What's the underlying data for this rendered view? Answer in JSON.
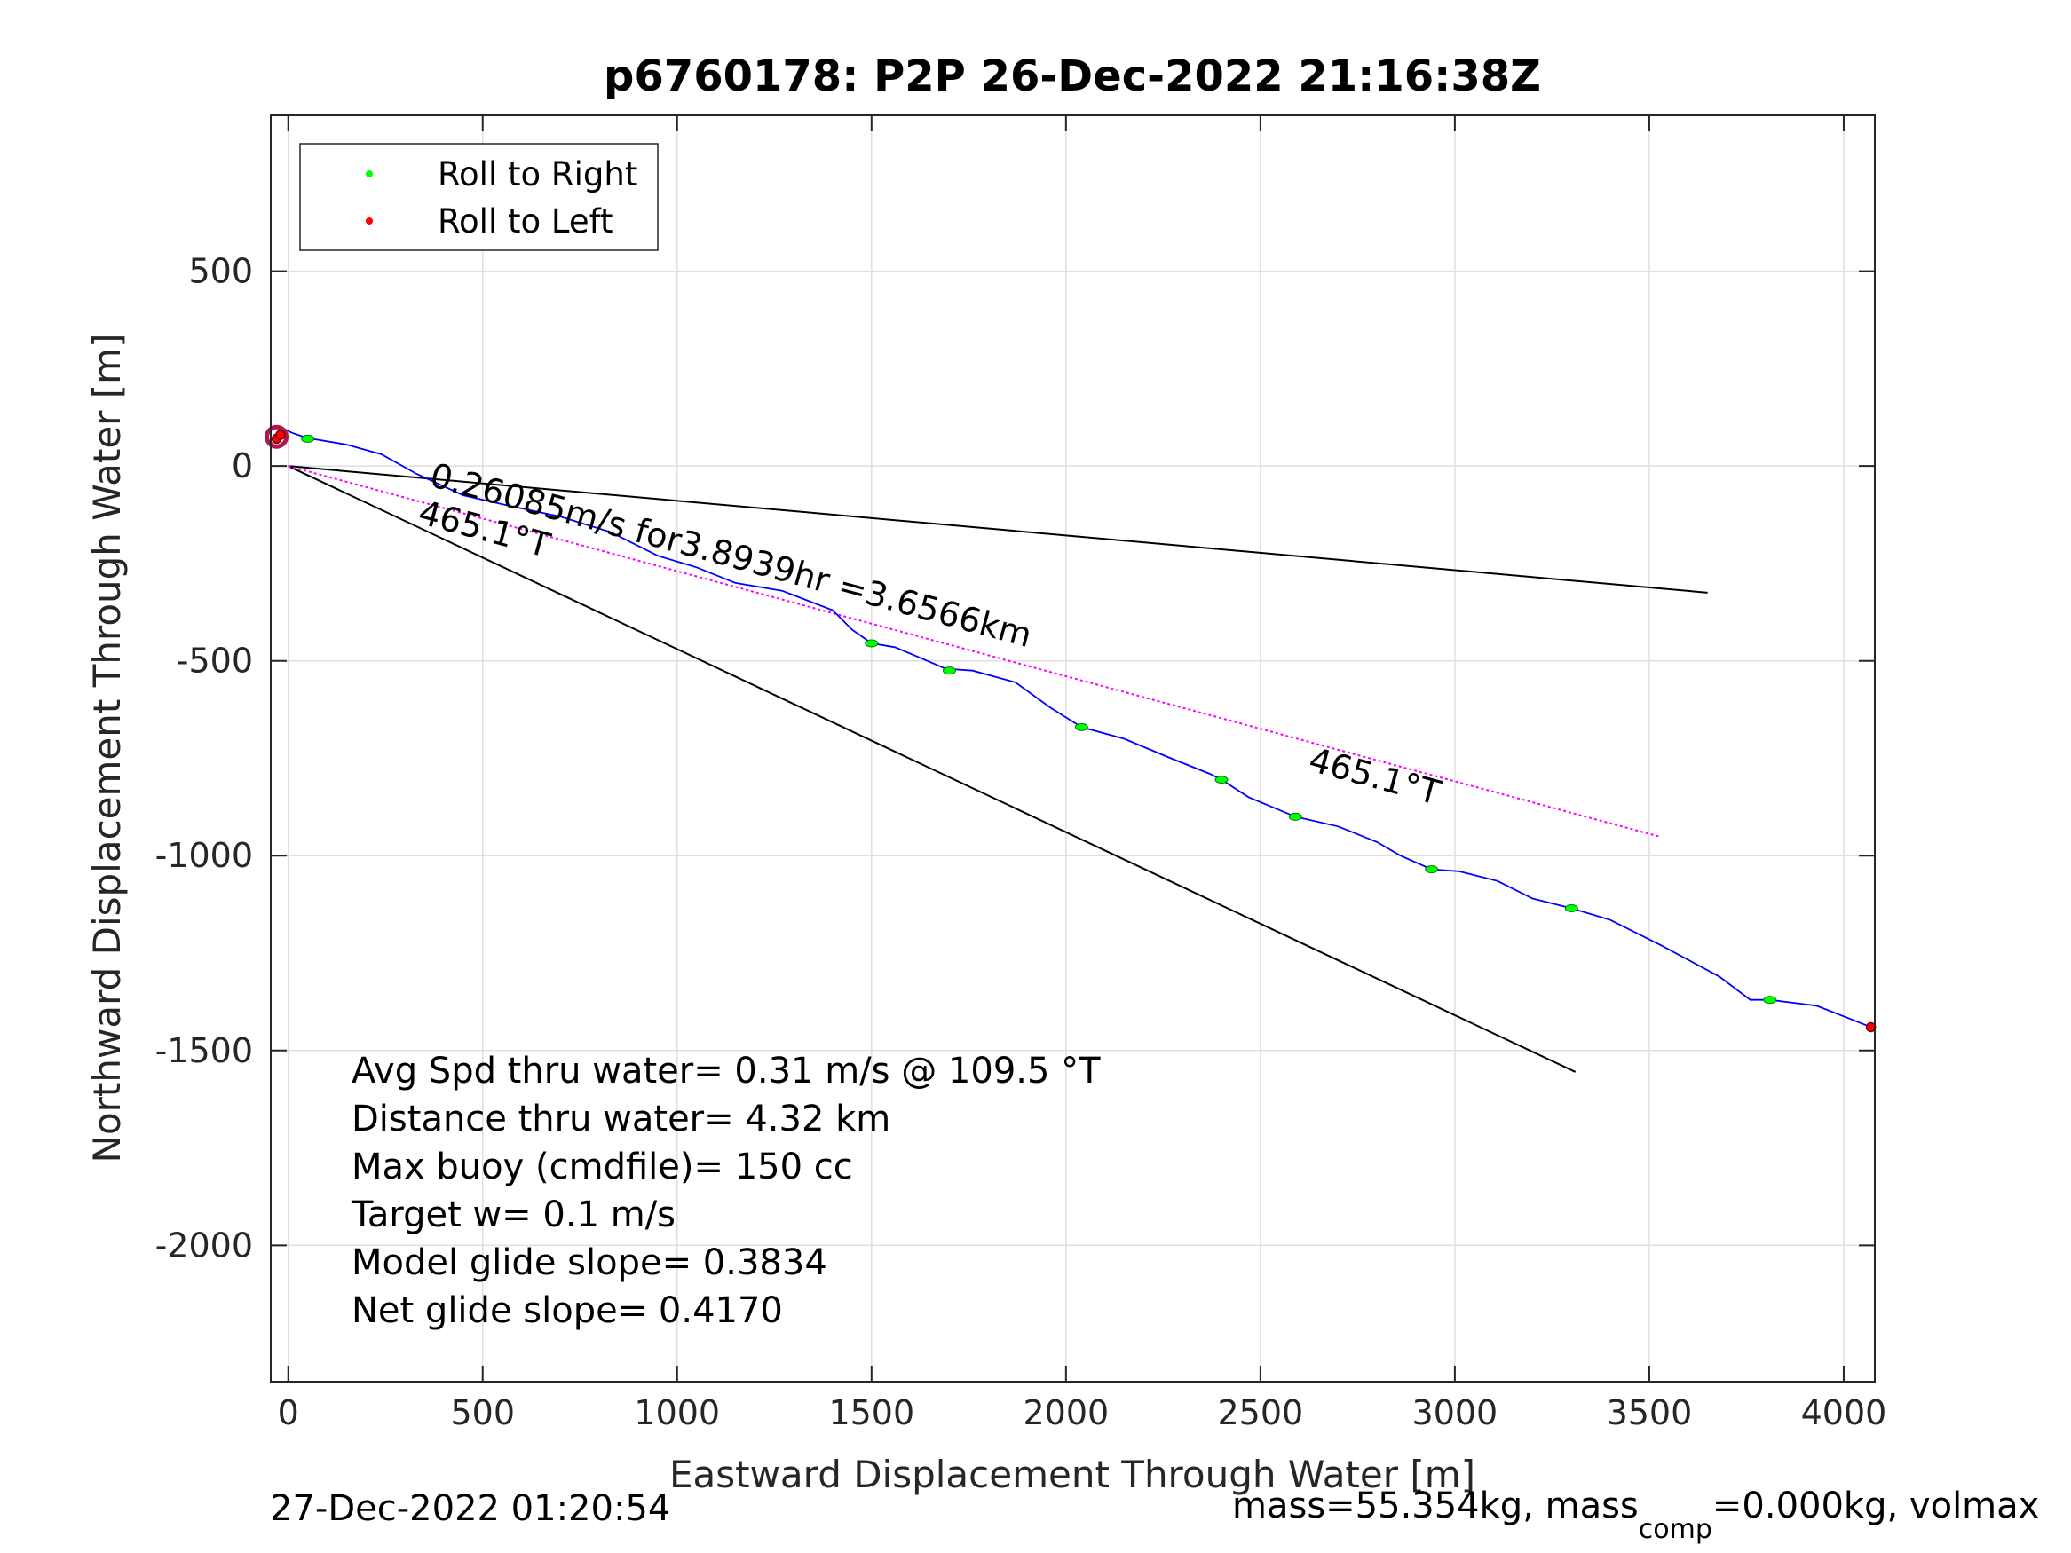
{
  "chart_data": {
    "type": "line",
    "title": "p6760178: P2P 26-Dec-2022 21:16:38Z",
    "xlabel": "Eastward Displacement Through Water [m]",
    "ylabel": "Northward Displacement Through Water [m]",
    "xlim": [
      -45,
      4080
    ],
    "ylim": [
      -2350,
      900
    ],
    "xticks": [
      0,
      500,
      1000,
      1500,
      2000,
      2500,
      3000,
      3500,
      4000
    ],
    "xtick_labels": [
      "0",
      "500",
      "1000",
      "1500",
      "2000",
      "2500",
      "3000",
      "3500",
      "4000"
    ],
    "yticks": [
      500,
      0,
      -500,
      -1000,
      -1500,
      -2000
    ],
    "ytick_labels": [
      "500",
      "0",
      "-500",
      "-1000",
      "-1500",
      "-2000"
    ],
    "grid": true,
    "legend": {
      "position": "top-left",
      "entries": [
        {
          "label": "Roll to Right",
          "color": "#00ff00"
        },
        {
          "label": "Roll to Left",
          "color": "#ff0000"
        }
      ]
    },
    "series": [
      {
        "name": "track",
        "color": "#0000ff",
        "x": [
          -40,
          -30,
          -10,
          10,
          40,
          60,
          150,
          240,
          330,
          450,
          560,
          700,
          830,
          950,
          1050,
          1150,
          1270,
          1400,
          1450,
          1500,
          1560,
          1620,
          1690,
          1760,
          1870,
          1960,
          2000,
          2040,
          2150,
          2270,
          2370,
          2400,
          2470,
          2590,
          2700,
          2800,
          2860,
          2940,
          3010,
          3110,
          3200,
          3300,
          3400,
          3530,
          3680,
          3760,
          3810,
          3930,
          4020,
          4070
        ],
        "y": [
          60,
          85,
          95,
          85,
          75,
          70,
          55,
          30,
          -20,
          -75,
          -100,
          -130,
          -170,
          -230,
          -260,
          -300,
          -320,
          -370,
          -420,
          -455,
          -465,
          -490,
          -520,
          -525,
          -555,
          -620,
          -645,
          -670,
          -700,
          -750,
          -790,
          -805,
          -850,
          -900,
          -925,
          -965,
          -1000,
          -1035,
          -1040,
          -1065,
          -1110,
          -1135,
          -1165,
          -1230,
          -1310,
          -1370,
          -1370,
          -1385,
          -1420,
          -1440
        ]
      }
    ],
    "roll_markers": {
      "right": {
        "color": "#00ff00",
        "x": [
          50,
          1500,
          1700,
          2040,
          2400,
          2590,
          2940,
          3300,
          3810
        ],
        "y": [
          70,
          -455,
          -525,
          -670,
          -805,
          -900,
          -1035,
          -1135,
          -1370
        ]
      },
      "left": {
        "color": "#ff0000",
        "x": [
          -30,
          -20,
          4070
        ],
        "y": [
          70,
          80,
          -1440
        ]
      }
    },
    "reference_lines": [
      {
        "x": [
          0,
          3650
        ],
        "y": [
          0,
          -325
        ],
        "color": "#000000"
      },
      {
        "x": [
          0,
          3310
        ],
        "y": [
          0,
          -1555
        ],
        "color": "#000000"
      },
      {
        "x": [
          0,
          3530
        ],
        "y": [
          0,
          -952
        ],
        "color": "#ff00ff",
        "style": "dotted"
      }
    ],
    "annotations": [
      {
        "text": "0.26085m/s for3.8939hr =3.6566km",
        "x": 360,
        "y": -50,
        "rotation": 15.1
      },
      {
        "text": "465.1°T",
        "x": 330,
        "y": -145,
        "rotation": 15.1
      },
      {
        "text": "465.1°T",
        "x": 2620,
        "y": -780,
        "rotation": 15.1
      }
    ],
    "stats": [
      "Avg Spd thru water=  0.31 m/s @ 109.5 °T",
      "Distance thru water=  4.32 km",
      "Max buoy (cmdfile)= 150 cc",
      "Target w= 0.1 m/s",
      "Model glide slope= 0.3834",
      "Net glide slope= 0.4170"
    ]
  },
  "footer": {
    "timestamp": "27-Dec-2022 01:20:54",
    "mass_prefix": "mass=55.354kg, mass",
    "mass_subscript": "comp",
    "mass_suffix": "=0.000kg, volmax"
  }
}
